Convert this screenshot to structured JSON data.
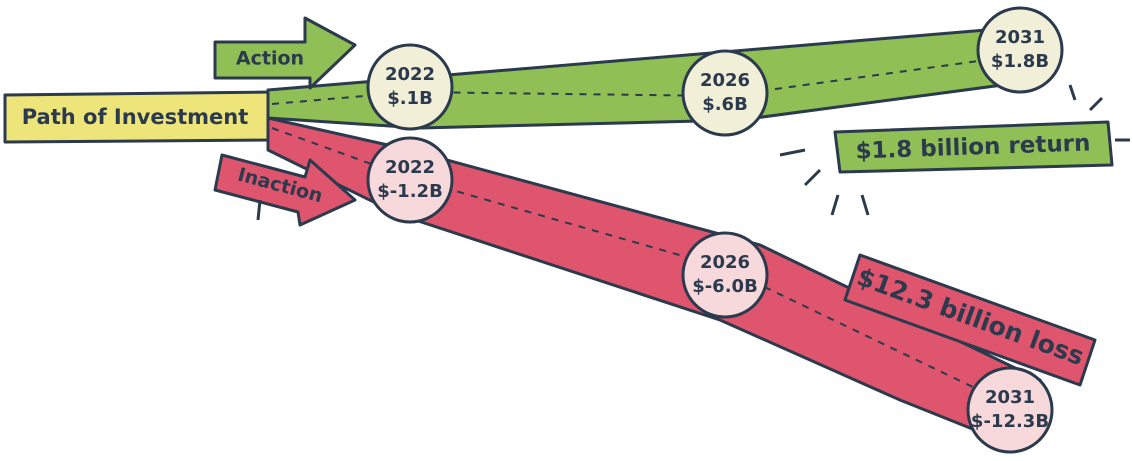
{
  "title": "Path of Investment",
  "paths": [
    {
      "label": "Action",
      "outcome": "$1.8 billion return",
      "points": [
        {
          "year": "2022",
          "value": "$.1B"
        },
        {
          "year": "2026",
          "value": "$.6B"
        },
        {
          "year": "2031",
          "value": "$1.8B"
        }
      ]
    },
    {
      "label": "Inaction",
      "outcome": "$12.3 billion loss",
      "points": [
        {
          "year": "2022",
          "value": "$-1.2B"
        },
        {
          "year": "2026",
          "value": "$-6.0B"
        },
        {
          "year": "2031",
          "value": "$-12.3B"
        }
      ]
    }
  ]
}
